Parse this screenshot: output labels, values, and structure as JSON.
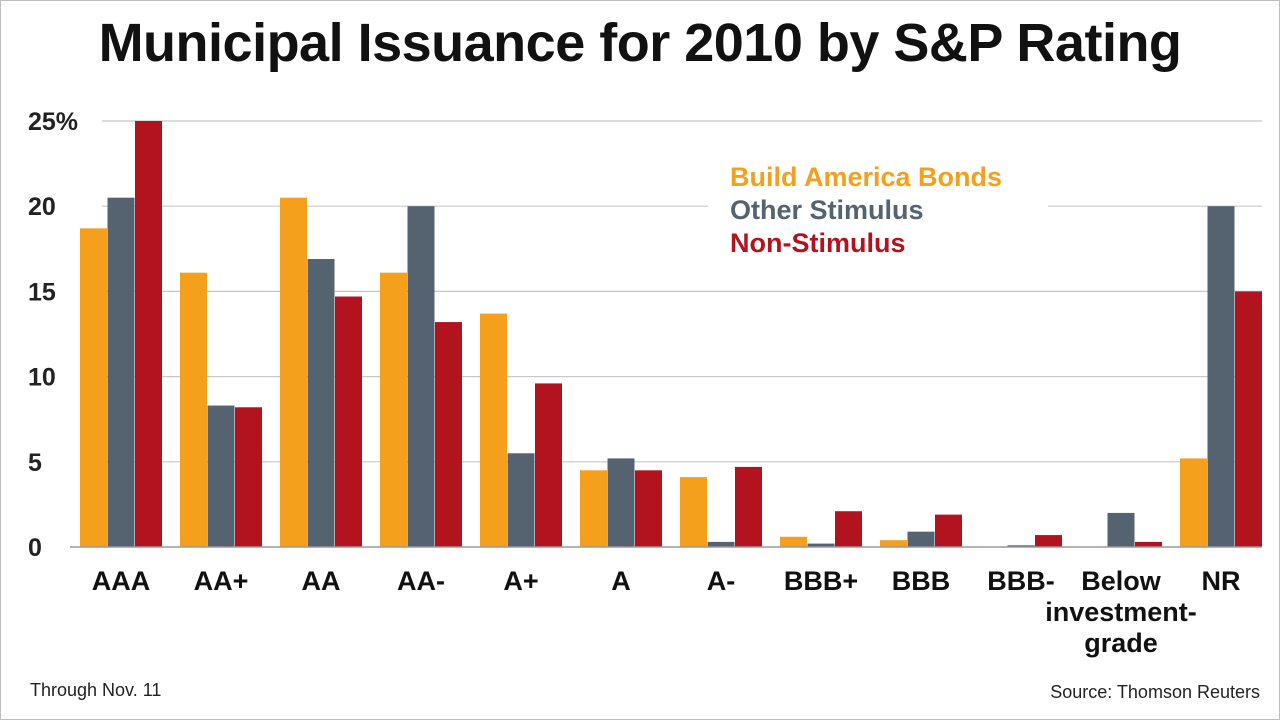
{
  "chart_data": {
    "type": "bar",
    "title": "Municipal Issuance for 2010 by S&P Rating",
    "categories": [
      "AAA",
      "AA+",
      "AA",
      "AA-",
      "A+",
      "A",
      "A-",
      "BBB+",
      "BBB",
      "BBB-",
      "Below investment-grade",
      "NR"
    ],
    "category_lines": [
      [
        "AAA"
      ],
      [
        "AA+"
      ],
      [
        "AA"
      ],
      [
        "AA-"
      ],
      [
        "A+"
      ],
      [
        "A"
      ],
      [
        "A-"
      ],
      [
        "BBB+"
      ],
      [
        "BBB"
      ],
      [
        "BBB-"
      ],
      [
        "Below",
        "investment-",
        "grade"
      ],
      [
        "NR"
      ]
    ],
    "series": [
      {
        "name": "Build America Bonds",
        "color": "#f5a01c",
        "values": [
          18.7,
          16.1,
          20.5,
          16.1,
          13.7,
          4.5,
          4.1,
          0.6,
          0.4,
          0,
          0,
          5.2
        ]
      },
      {
        "name": "Other Stimulus",
        "color": "#556370",
        "values": [
          20.5,
          8.3,
          16.9,
          20.0,
          5.5,
          5.2,
          0.3,
          0.2,
          0.9,
          0.1,
          2.0,
          20.0
        ]
      },
      {
        "name": "Non-Stimulus",
        "color": "#b3131e",
        "values": [
          25.0,
          8.2,
          14.7,
          13.2,
          9.6,
          4.5,
          4.7,
          2.1,
          1.9,
          0.7,
          0.3,
          15.0
        ]
      }
    ],
    "yticks": [
      0,
      5,
      10,
      15,
      20,
      25
    ],
    "ytick_labels": [
      "0",
      "5",
      "10",
      "15",
      "20",
      "25%"
    ],
    "ylim": [
      0,
      25
    ],
    "grid": true,
    "legend_position": "top-right",
    "xlabel": "",
    "ylabel": ""
  },
  "footer": {
    "note": "Through Nov. 11",
    "source": "Source: Thomson Reuters"
  }
}
